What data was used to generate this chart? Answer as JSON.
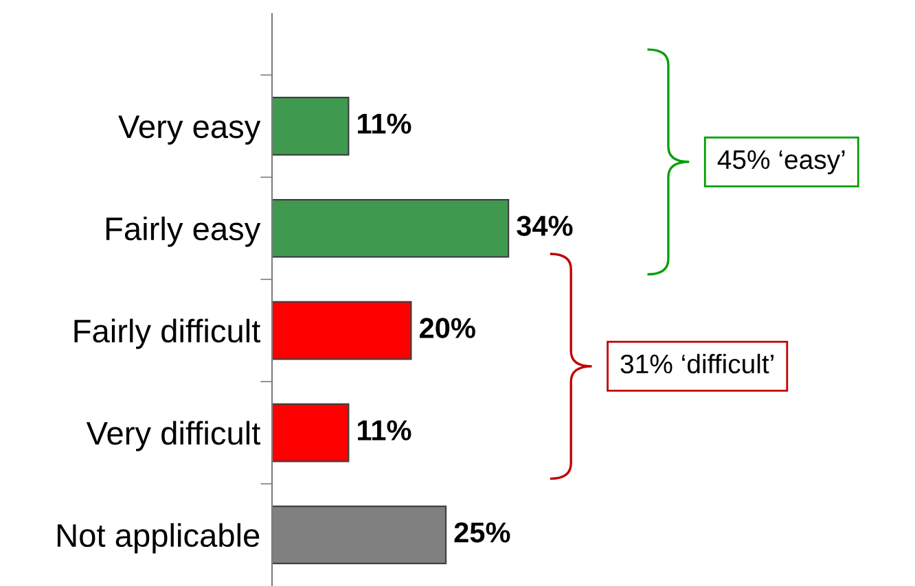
{
  "chart_data": {
    "type": "bar",
    "orientation": "horizontal",
    "categories": [
      "Very easy",
      "Fairly easy",
      "Fairly difficult",
      "Very difficult",
      "Not applicable"
    ],
    "values": [
      11,
      34,
      20,
      11,
      25
    ],
    "colors": [
      "#3f9a50",
      "#3f9a50",
      "#ff0000",
      "#ff0000",
      "#808080"
    ],
    "value_labels": [
      "11%",
      "34%",
      "20%",
      "11%",
      "25%"
    ],
    "annotations": [
      "45% ‘easy’",
      "31% ‘difficult’"
    ],
    "grid": false,
    "legend": false
  }
}
